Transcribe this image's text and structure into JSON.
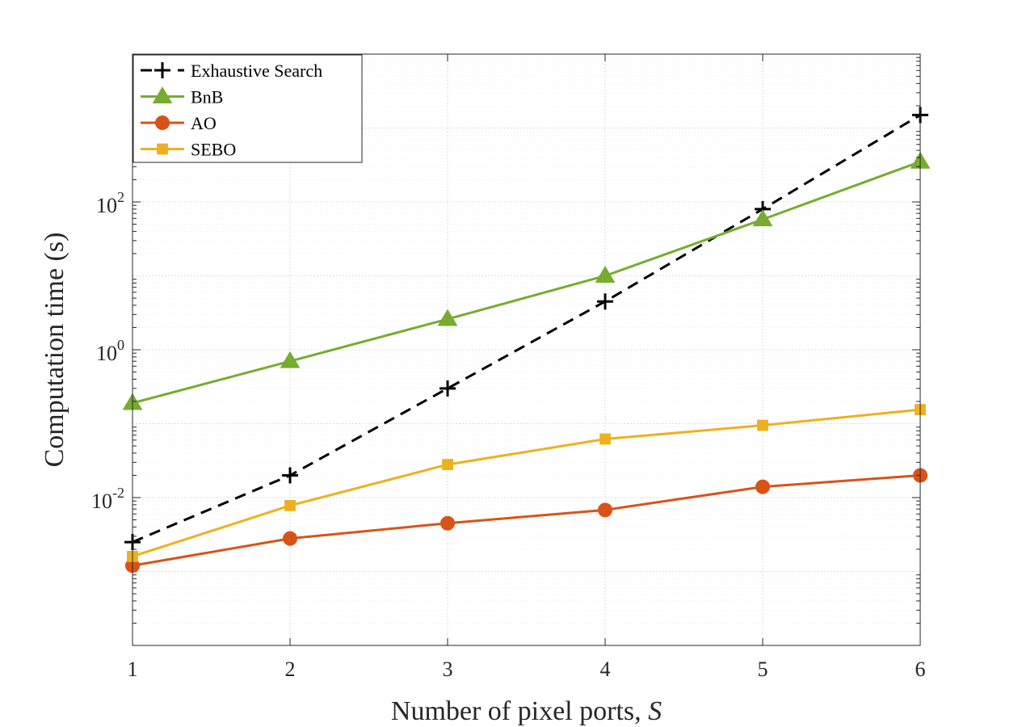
{
  "chart_data": {
    "type": "line",
    "xlabel": "Number of pixel ports, ",
    "xlabel_var": "S",
    "ylabel": "Computation time (s)",
    "yscale": "log",
    "xlim": [
      1,
      6
    ],
    "ylim": [
      0.0001,
      10000
    ],
    "grid": true,
    "minor_grid": true,
    "legend_position": "top-left",
    "x": [
      1,
      2,
      3,
      4,
      5,
      6
    ],
    "x_tick_labels": [
      "1",
      "2",
      "3",
      "4",
      "5",
      "6"
    ],
    "y_ticks": [
      {
        "value": 0.01,
        "base": "10",
        "exp": "-2"
      },
      {
        "value": 1,
        "base": "10",
        "exp": "0"
      },
      {
        "value": 100,
        "base": "10",
        "exp": "2"
      }
    ],
    "series": [
      {
        "name": "Exhaustive Search",
        "color": "#000000",
        "dash": "dashed",
        "marker": "plus",
        "values": [
          0.0025,
          0.02,
          0.3,
          4.5,
          80,
          1500
        ]
      },
      {
        "name": "BnB",
        "color": "#77AC30",
        "dash": "solid",
        "marker": "triangle",
        "values": [
          0.19,
          0.7,
          2.6,
          10,
          58,
          350
        ]
      },
      {
        "name": "AO",
        "color": "#D95319",
        "dash": "solid",
        "marker": "circle",
        "values": [
          0.0012,
          0.0028,
          0.0045,
          0.0068,
          0.014,
          0.02
        ]
      },
      {
        "name": "SEBO",
        "color": "#EDB120",
        "dash": "solid",
        "marker": "square",
        "values": [
          0.0016,
          0.0078,
          0.028,
          0.062,
          0.095,
          0.155
        ]
      }
    ]
  }
}
